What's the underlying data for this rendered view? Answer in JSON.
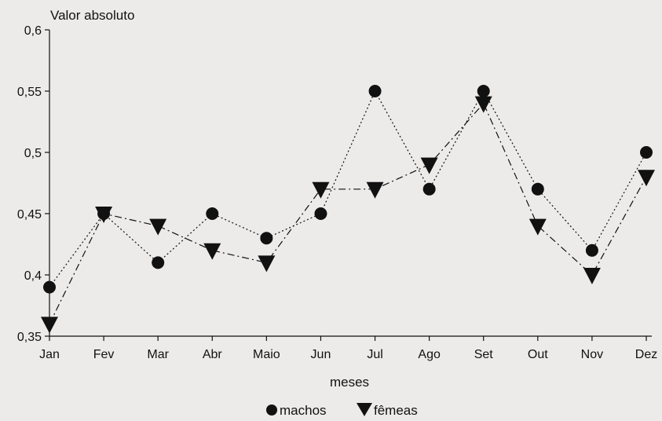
{
  "chart_data": {
    "type": "line",
    "title": "",
    "ylabel": "Valor absoluto",
    "xlabel": "meses",
    "categories": [
      "Jan",
      "Fev",
      "Mar",
      "Abr",
      "Maio",
      "Jun",
      "Jul",
      "Ago",
      "Set",
      "Out",
      "Nov",
      "Dez"
    ],
    "ylim": [
      0.35,
      0.6
    ],
    "yticks": [
      0.35,
      0.4,
      0.45,
      0.5,
      0.55,
      0.6
    ],
    "ytick_labels": [
      "0,35",
      "0,4",
      "0,45",
      "0,5",
      "0,55",
      "0,6"
    ],
    "grid": false,
    "legend_position": "bottom-center",
    "series": [
      {
        "name": "machos",
        "marker": "circle",
        "line_style": "dotted",
        "color": "#111111",
        "values": [
          0.39,
          0.45,
          0.41,
          0.45,
          0.43,
          0.45,
          0.55,
          0.47,
          0.55,
          0.47,
          0.42,
          0.5
        ]
      },
      {
        "name": "fêmeas",
        "marker": "triangle-down",
        "line_style": "dash-dot",
        "color": "#111111",
        "values": [
          0.36,
          0.45,
          0.44,
          0.42,
          0.41,
          0.47,
          0.47,
          0.49,
          0.54,
          0.44,
          0.4,
          0.48
        ]
      }
    ]
  }
}
